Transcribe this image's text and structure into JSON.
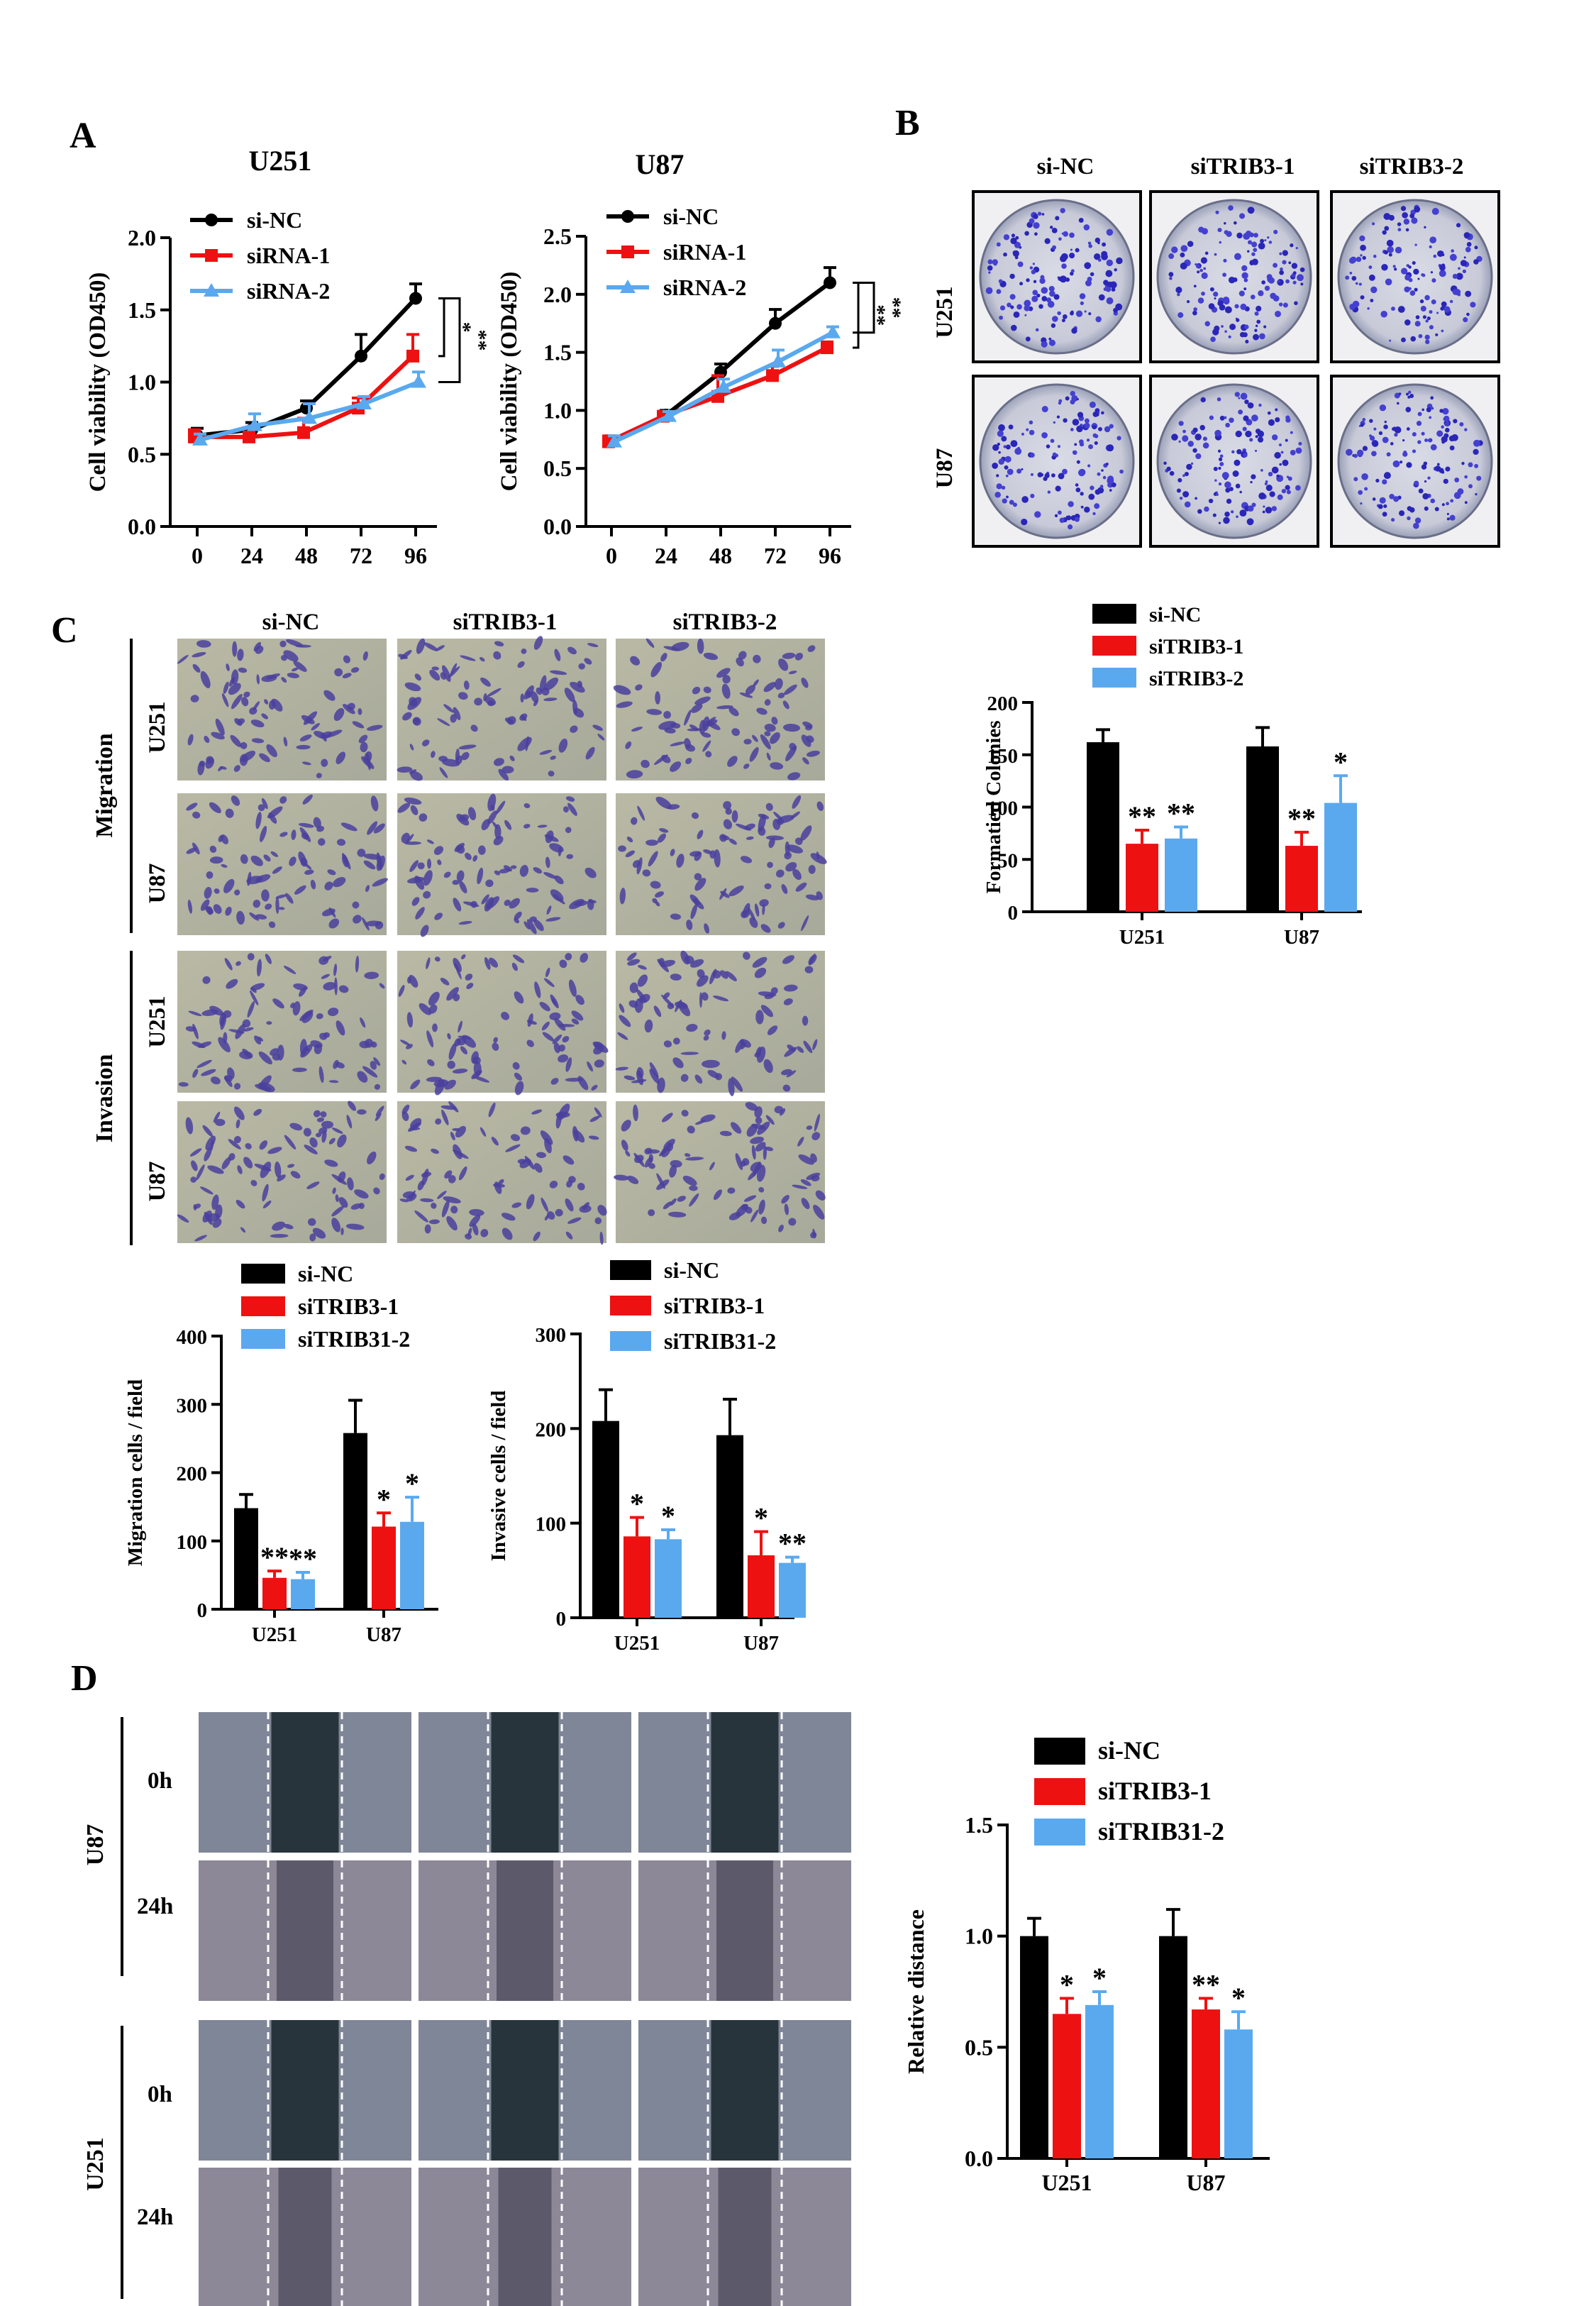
{
  "panels": {
    "A": {
      "letter": "A",
      "colors": {
        "si_nc": "#000000",
        "sirna1": "#ee1111",
        "sirna2": "#5aa9ef"
      },
      "chart_data": [
        {
          "type": "line",
          "title": "U251",
          "xlabel": "",
          "ylabel": "Cell viability (OD450)",
          "x": [
            0,
            24,
            48,
            72,
            96
          ],
          "ylim": [
            0,
            2.0
          ],
          "yticks": [
            "0.0",
            "0.5",
            "1.0",
            "1.5",
            "2.0"
          ],
          "series": [
            {
              "name": "si-NC",
              "values": [
                0.63,
                0.67,
                0.82,
                1.18,
                1.58
              ],
              "err": [
                0.05,
                0.05,
                0.05,
                0.15,
                0.1
              ]
            },
            {
              "name": "siRNA-1",
              "values": [
                0.62,
                0.62,
                0.65,
                0.82,
                1.18
              ],
              "err": [
                0.05,
                0.06,
                0.1,
                0.07,
                0.15
              ]
            },
            {
              "name": "siRNA-2",
              "values": [
                0.6,
                0.7,
                0.75,
                0.85,
                1.0
              ],
              "err": [
                0.04,
                0.08,
                0.1,
                0.05,
                0.07
              ]
            }
          ],
          "annotations": [
            "*",
            "**"
          ]
        },
        {
          "type": "line",
          "title": "U87",
          "xlabel": "",
          "ylabel": "Cell viability (OD450)",
          "x": [
            0,
            24,
            48,
            72,
            96
          ],
          "ylim": [
            0,
            2.5
          ],
          "yticks": [
            "0.0",
            "0.5",
            "1.0",
            "1.5",
            "2.0",
            "2.5"
          ],
          "series": [
            {
              "name": "si-NC",
              "values": [
                0.73,
                0.96,
                1.33,
                1.75,
                2.1
              ],
              "err": [
                0.05,
                0.04,
                0.07,
                0.12,
                0.13
              ]
            },
            {
              "name": "siRNA-1",
              "values": [
                0.73,
                0.95,
                1.12,
                1.3,
                1.54
              ],
              "err": [
                0.05,
                0.04,
                0.18,
                0.08,
                0.05
              ]
            },
            {
              "name": "siRNA-2",
              "values": [
                0.73,
                0.95,
                1.2,
                1.42,
                1.67
              ],
              "err": [
                0.05,
                0.04,
                0.07,
                0.1,
                0.05
              ]
            }
          ],
          "annotations": [
            "**",
            "**"
          ]
        }
      ]
    },
    "B": {
      "letter": "B",
      "col_labels": [
        "si-NC",
        "siTRIB3-1",
        "siTRIB3-2"
      ],
      "row_labels": [
        "U251",
        "U87"
      ],
      "chart_data": {
        "type": "bar",
        "title": "",
        "xlabel": "",
        "ylabel": "Formatied Colonies",
        "categories": [
          "U251",
          "U87"
        ],
        "ylim": [
          0,
          200
        ],
        "yticks": [
          "0",
          "50",
          "100",
          "150",
          "200"
        ],
        "series": [
          {
            "name": "si-NC",
            "values": [
              162,
              158
            ],
            "err": [
              12,
              18
            ],
            "color": "#000000"
          },
          {
            "name": "siTRIB3-1",
            "values": [
              65,
              63
            ],
            "err": [
              13,
              13
            ],
            "color": "#ee1111"
          },
          {
            "name": "siTRIB3-2",
            "values": [
              70,
              104
            ],
            "err": [
              11,
              26
            ],
            "color": "#5aa9ef"
          }
        ],
        "sig": [
          [
            "",
            "**",
            "**"
          ],
          [
            "",
            "**",
            "*"
          ]
        ]
      }
    },
    "C": {
      "letter": "C",
      "col_labels": [
        "si-NC",
        "siTRIB3-1",
        "siTRIB3-2"
      ],
      "group_labels": [
        "Migration",
        "Invasion"
      ],
      "row_labels": [
        "U251",
        "U87",
        "U251",
        "U87"
      ],
      "chart_data": [
        {
          "type": "bar",
          "title": "",
          "xlabel": "",
          "ylabel": "Migration cells / field",
          "categories": [
            "U251",
            "U87"
          ],
          "ylim": [
            0,
            400
          ],
          "yticks": [
            "0",
            "100",
            "200",
            "300",
            "400"
          ],
          "series": [
            {
              "name": "si-NC",
              "values": [
                148,
                258
              ],
              "err": [
                20,
                48
              ],
              "color": "#000000"
            },
            {
              "name": "siTRIB3-1",
              "values": [
                46,
                121
              ],
              "err": [
                10,
                20
              ],
              "color": "#ee1111"
            },
            {
              "name": "siTRIB31-2",
              "values": [
                44,
                128
              ],
              "err": [
                10,
                36
              ],
              "color": "#5aa9ef"
            }
          ],
          "sig": [
            [
              "",
              "**",
              "**"
            ],
            [
              "",
              "*",
              "*"
            ]
          ]
        },
        {
          "type": "bar",
          "title": "",
          "xlabel": "",
          "ylabel": "Invasive cells / field",
          "categories": [
            "U251",
            "U87"
          ],
          "ylim": [
            0,
            300
          ],
          "yticks": [
            "0",
            "100",
            "200",
            "300"
          ],
          "series": [
            {
              "name": "si-NC",
              "values": [
                208,
                193
              ],
              "err": [
                33,
                38
              ],
              "color": "#000000"
            },
            {
              "name": "siTRIB3-1",
              "values": [
                86,
                66
              ],
              "err": [
                20,
                25
              ],
              "color": "#ee1111"
            },
            {
              "name": "siTRIB31-2",
              "values": [
                83,
                58
              ],
              "err": [
                10,
                6
              ],
              "color": "#5aa9ef"
            }
          ],
          "sig": [
            [
              "",
              "*",
              "*"
            ],
            [
              "",
              "*",
              "**"
            ]
          ]
        }
      ]
    },
    "D": {
      "letter": "D",
      "group_labels": [
        "U87",
        "U251"
      ],
      "time_labels": [
        "0h",
        "24h",
        "0h",
        "24h"
      ],
      "chart_data": {
        "type": "bar",
        "title": "",
        "xlabel": "",
        "ylabel": "Relative distance",
        "categories": [
          "U251",
          "U87"
        ],
        "ylim": [
          0,
          1.5
        ],
        "yticks": [
          "0.0",
          "0.5",
          "1.0",
          "1.5"
        ],
        "series": [
          {
            "name": "si-NC",
            "values": [
              1.0,
              1.0
            ],
            "err": [
              0.08,
              0.12
            ],
            "color": "#000000"
          },
          {
            "name": "siTRIB3-1",
            "values": [
              0.65,
              0.67
            ],
            "err": [
              0.07,
              0.05
            ],
            "color": "#ee1111"
          },
          {
            "name": "siTRIB31-2",
            "values": [
              0.69,
              0.58
            ],
            "err": [
              0.06,
              0.08
            ],
            "color": "#5aa9ef"
          }
        ],
        "sig": [
          [
            "",
            "*",
            "*"
          ],
          [
            "",
            "**",
            "*"
          ]
        ]
      }
    }
  }
}
